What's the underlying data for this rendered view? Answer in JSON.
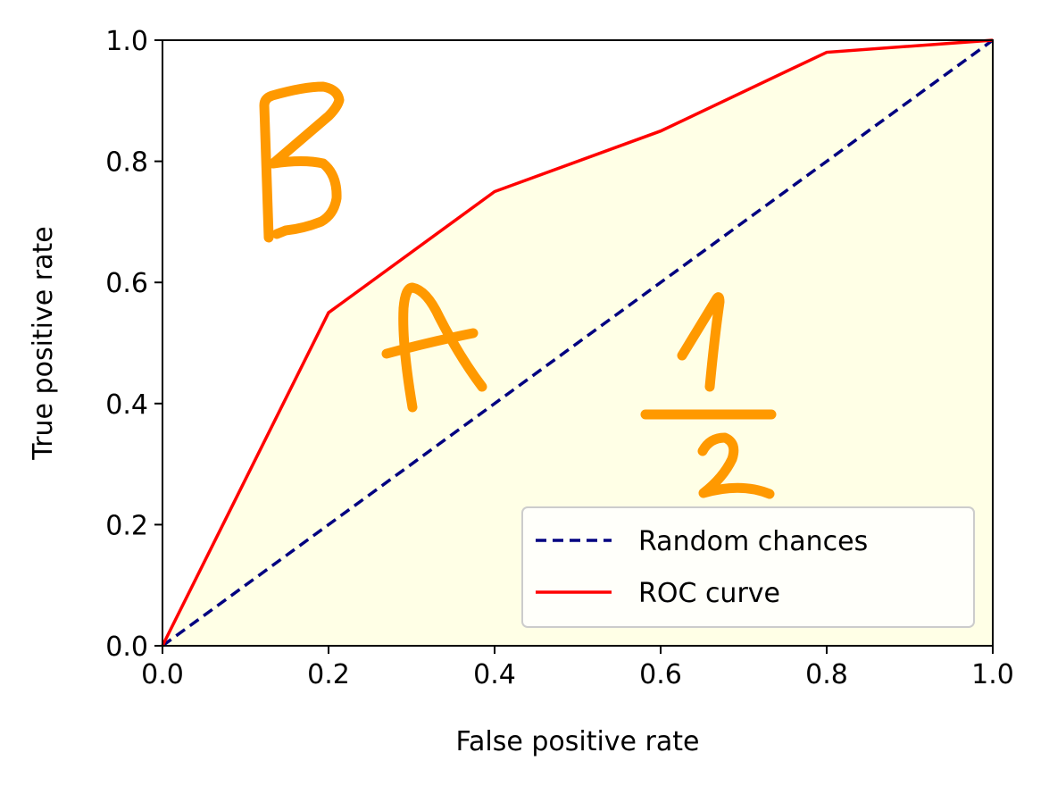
{
  "chart_data": {
    "type": "line",
    "xlabel": "False positive rate",
    "ylabel": "True positive rate",
    "xlim": [
      0.0,
      1.0
    ],
    "ylim": [
      0.0,
      1.0
    ],
    "xticks": [
      "0.0",
      "0.2",
      "0.4",
      "0.6",
      "0.8",
      "1.0"
    ],
    "yticks": [
      "0.0",
      "0.2",
      "0.4",
      "0.6",
      "0.8",
      "1.0"
    ],
    "grid": false,
    "legend_position": "bottom-right",
    "fill_under": "ROC curve",
    "series": [
      {
        "name": "Random chances",
        "style": "dashed",
        "color": "#000080",
        "x": [
          0.0,
          1.0
        ],
        "y": [
          0.0,
          1.0
        ]
      },
      {
        "name": "ROC curve",
        "style": "solid",
        "color": "#ff0000",
        "x": [
          0.0,
          0.2,
          0.4,
          0.6,
          0.8,
          1.0
        ],
        "y": [
          0.0,
          0.55,
          0.75,
          0.85,
          0.98,
          1.0
        ]
      }
    ],
    "annotations": [
      "B",
      "A",
      "1",
      "2"
    ]
  },
  "colors": {
    "fill": "#ffffe6",
    "annotation": "#ff9900"
  }
}
